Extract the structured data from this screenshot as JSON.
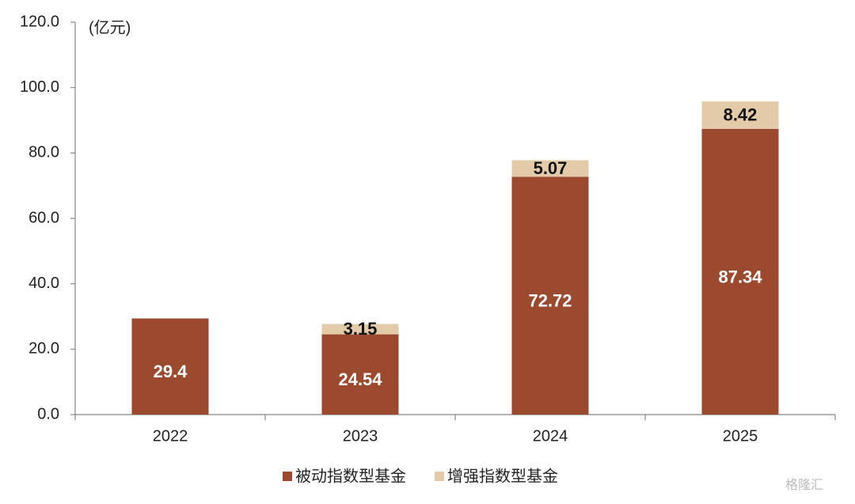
{
  "chart_data": {
    "type": "stacked-bar",
    "unit_label": "(亿元)",
    "categories": [
      "2022",
      "2023",
      "2024",
      "2025"
    ],
    "series": [
      {
        "name": "被动指数型基金",
        "color": "#9b4a2f",
        "values": [
          29.4,
          24.54,
          72.72,
          87.34
        ]
      },
      {
        "name": "增强指数型基金",
        "color": "#e3cba9",
        "values": [
          null,
          3.15,
          5.07,
          8.42
        ]
      }
    ],
    "ylim": [
      0,
      120
    ],
    "yticks": [
      {
        "value": 0,
        "label": "0.0"
      },
      {
        "value": 20,
        "label": "20.0"
      },
      {
        "value": 40,
        "label": "40.0"
      },
      {
        "value": 60,
        "label": "60.0"
      },
      {
        "value": 80,
        "label": "80.0"
      },
      {
        "value": 100,
        "label": "100.0"
      },
      {
        "value": 120,
        "label": "120.0"
      }
    ],
    "legend": "bottom",
    "watermark": "格隆汇"
  }
}
